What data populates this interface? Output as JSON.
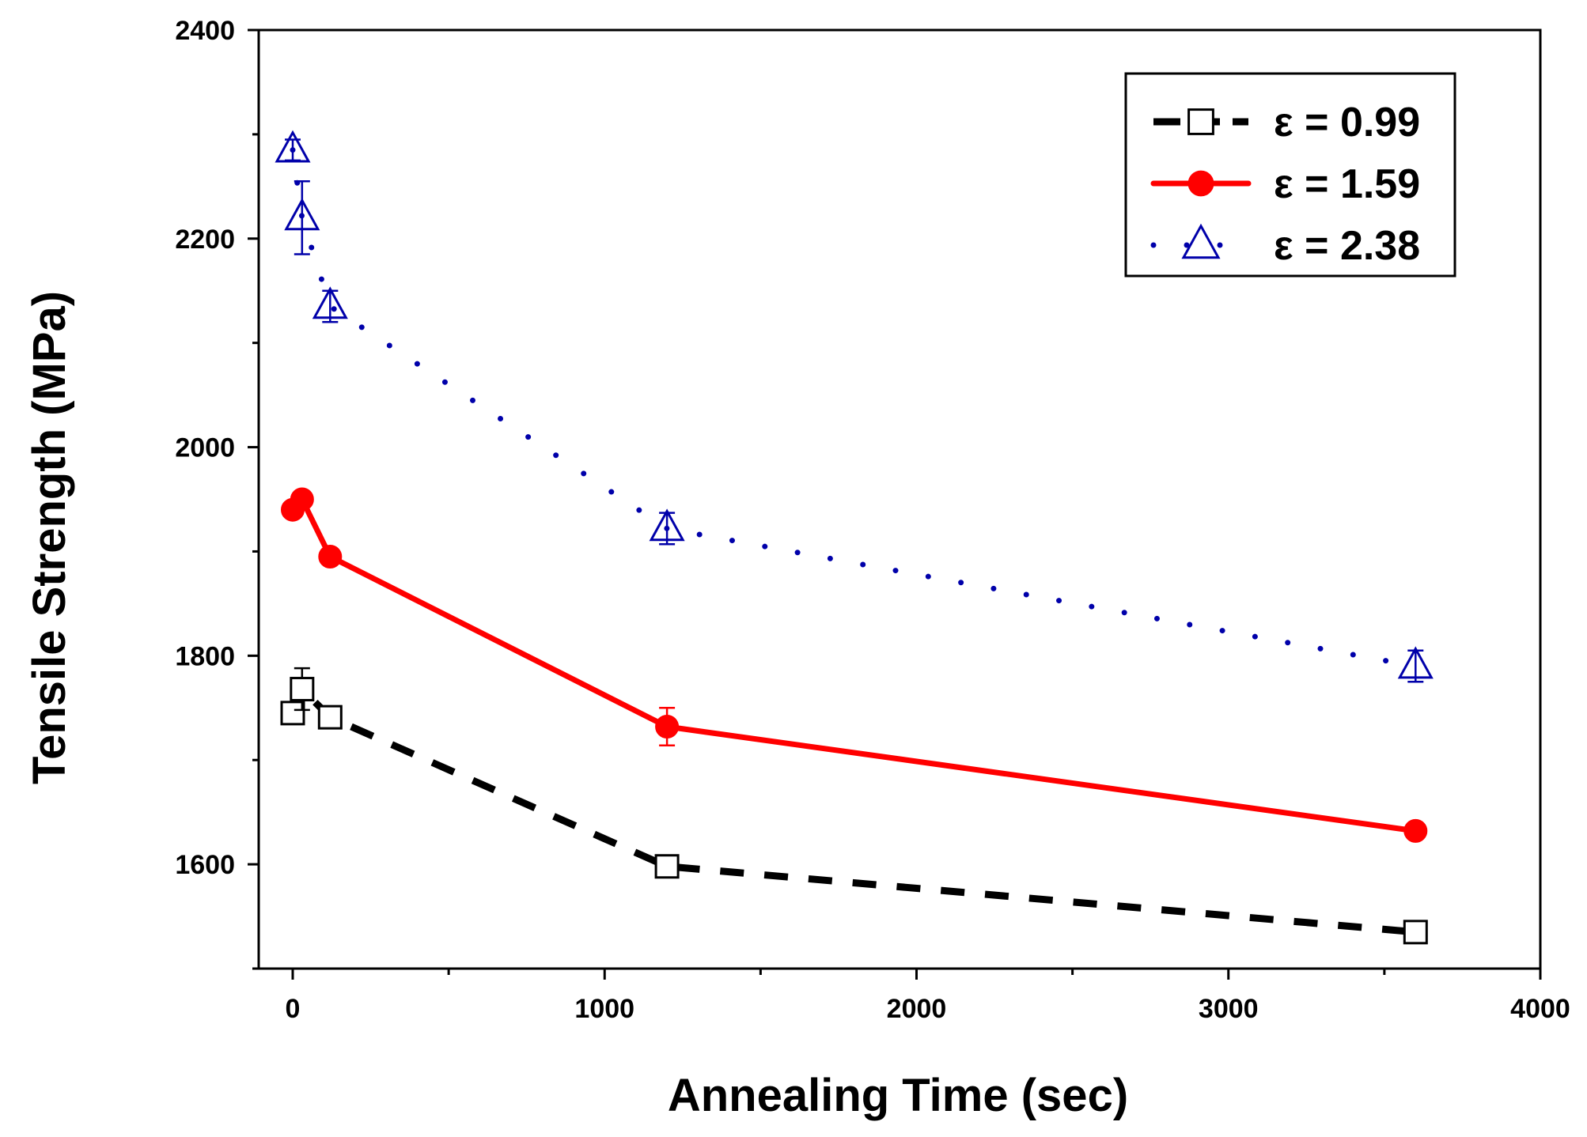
{
  "chart_data": {
    "type": "line",
    "title": "",
    "xlabel": "Annealing Time (sec)",
    "ylabel": "Tensile Strength (MPa)",
    "xlim": [
      -100,
      4000
    ],
    "ylim": [
      1500,
      2400
    ],
    "xticks": [
      0,
      1000,
      2000,
      3000,
      4000
    ],
    "yticks": [
      1600,
      1800,
      2000,
      2200,
      2400
    ],
    "grid": false,
    "legend_position": "top-right",
    "series": [
      {
        "name": "ε = 0.99",
        "color": "#000000",
        "line_style": "dashed",
        "marker": "open-square",
        "points": [
          {
            "x": 0,
            "y": 1745,
            "err": 10
          },
          {
            "x": 30,
            "y": 1768,
            "err": 20
          },
          {
            "x": 120,
            "y": 1741,
            "err": 8
          },
          {
            "x": 1200,
            "y": 1598,
            "err": 8
          },
          {
            "x": 3600,
            "y": 1535,
            "err": 8
          }
        ]
      },
      {
        "name": "ε = 1.59",
        "color": "#ff0000",
        "line_style": "solid",
        "marker": "filled-circle",
        "points": [
          {
            "x": 0,
            "y": 1940,
            "err": 5
          },
          {
            "x": 30,
            "y": 1950,
            "err": 5
          },
          {
            "x": 120,
            "y": 1895,
            "err": 5
          },
          {
            "x": 1200,
            "y": 1732,
            "err": 18
          },
          {
            "x": 3600,
            "y": 1632,
            "err": 5
          }
        ]
      },
      {
        "name": "ε = 2.38",
        "color": "#0000aa",
        "line_style": "dotted",
        "marker": "open-triangle",
        "points": [
          {
            "x": 0,
            "y": 2285,
            "err": 10
          },
          {
            "x": 30,
            "y": 2220,
            "err": 35
          },
          {
            "x": 120,
            "y": 2135,
            "err": 15
          },
          {
            "x": 1200,
            "y": 1922,
            "err": 15
          },
          {
            "x": 3600,
            "y": 1790,
            "err": 15
          }
        ]
      }
    ]
  }
}
